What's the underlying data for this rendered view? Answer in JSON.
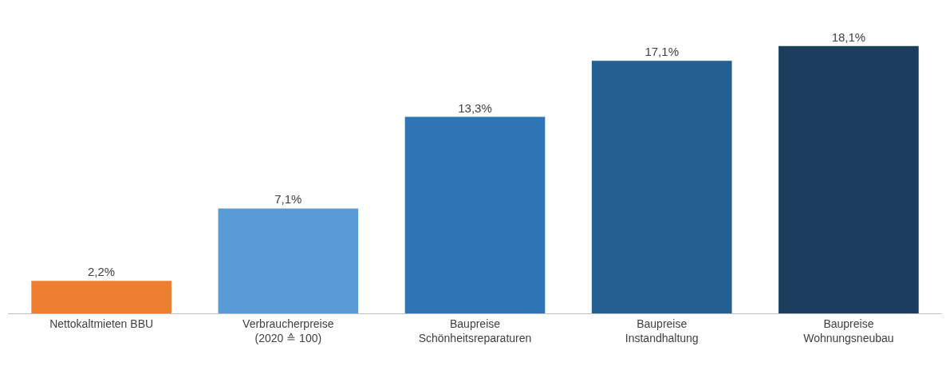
{
  "chart_data": {
    "type": "bar",
    "categories": [
      "Nettokaltmieten BBU",
      "Verbraucherpreise\n(2020 ≙ 100)",
      "Baupreise\nSchönheitsreparaturen",
      "Baupreise\nInstandhaltung",
      "Baupreise\nWohnungsneubau"
    ],
    "values": [
      2.2,
      7.1,
      13.3,
      17.1,
      18.1
    ],
    "value_labels": [
      "2,2%",
      "7,1%",
      "13,3%",
      "17,1%",
      "18,1%"
    ],
    "colors": [
      "#ed7d31",
      "#5b9bd5",
      "#2e75b6",
      "#255e91",
      "#1c3d5e"
    ]
  }
}
